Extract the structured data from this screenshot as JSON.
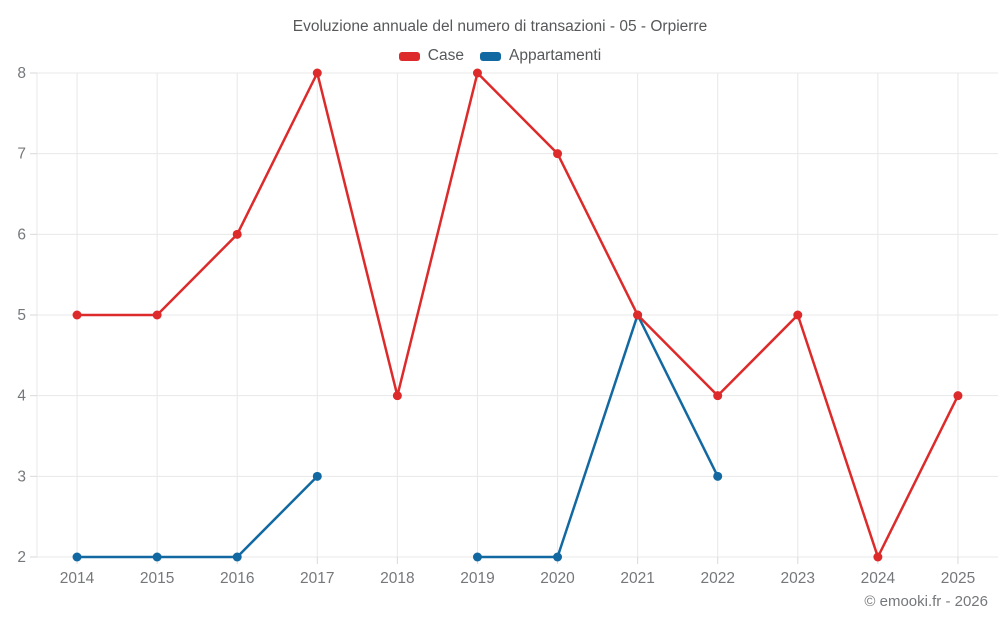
{
  "header": {
    "title": "Evoluzione annuale del numero di transazioni - 05 - Orpierre"
  },
  "footer": {
    "credit": "© emooki.fr - 2026"
  },
  "chart_data": {
    "type": "line",
    "title": "Evoluzione annuale del numero di transazioni - 05 - Orpierre",
    "categories": [
      "2014",
      "2015",
      "2016",
      "2017",
      "2018",
      "2019",
      "2020",
      "2021",
      "2022",
      "2023",
      "2024",
      "2025"
    ],
    "series": [
      {
        "name": "Case",
        "color": "#dd2a2a",
        "values": [
          5,
          5,
          6,
          8,
          4,
          8,
          7,
          5,
          4,
          5,
          2,
          4
        ]
      },
      {
        "name": "Appartamenti",
        "color": "#1269a2",
        "values": [
          2,
          2,
          2,
          3,
          null,
          2,
          2,
          5,
          3,
          null,
          null,
          null
        ]
      }
    ],
    "xlabel": "",
    "ylabel": "",
    "ylim": [
      2,
      8
    ],
    "yticks": [
      2,
      3,
      4,
      5,
      6,
      7,
      8
    ],
    "grid": true,
    "legend_position": "top",
    "colors": {
      "gridline": "#e8e8e8",
      "tick": "#d9d9d9",
      "axis_label": "#75787b",
      "title_text": "#56585a"
    }
  }
}
